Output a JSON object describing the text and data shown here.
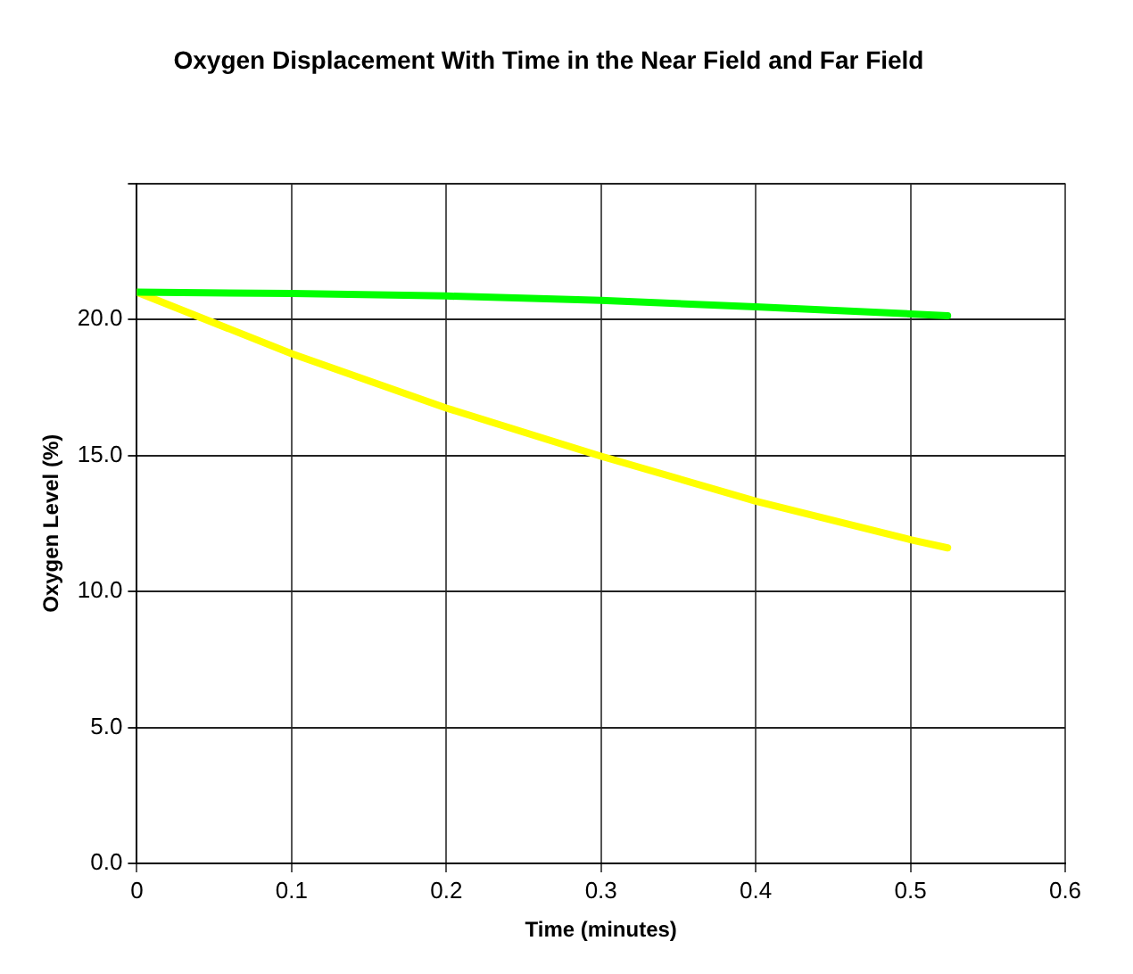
{
  "chart_data": {
    "type": "line",
    "title": "Oxygen Displacement With Time in the Near Field and Far Field",
    "xlabel": "Time (minutes)",
    "ylabel": "Oxygen Level (%)",
    "xlim": [
      0,
      0.6
    ],
    "xticks": [
      {
        "value": 0,
        "label": "0"
      },
      {
        "value": 0.1,
        "label": "0.1"
      },
      {
        "value": 0.2,
        "label": "0.2"
      },
      {
        "value": 0.3,
        "label": "0.3"
      },
      {
        "value": 0.4,
        "label": "0.4"
      },
      {
        "value": 0.5,
        "label": "0.5"
      },
      {
        "value": 0.6,
        "label": "0.6"
      }
    ],
    "ylim": [
      0,
      25
    ],
    "yticks": [
      {
        "value": 0,
        "label": "0.0"
      },
      {
        "value": 5,
        "label": "5.0"
      },
      {
        "value": 10,
        "label": "10.0"
      },
      {
        "value": 15,
        "label": "15.0"
      },
      {
        "value": 20,
        "label": "20.0"
      },
      {
        "value": 25,
        "label": null
      }
    ],
    "grid": true,
    "legend": false,
    "marker": "none",
    "line_style": "solid",
    "series": [
      {
        "color": "#00ff00",
        "x": [
          0,
          0.1,
          0.2,
          0.3,
          0.4,
          0.5,
          0.524
        ],
        "values": [
          21.0,
          20.95,
          20.86,
          20.7,
          20.46,
          20.2,
          20.13
        ]
      },
      {
        "color": "#ffff00",
        "x": [
          0,
          0.1,
          0.2,
          0.3,
          0.4,
          0.5,
          0.524
        ],
        "values": [
          21.0,
          18.74,
          16.74,
          14.97,
          13.32,
          11.9,
          11.6
        ]
      }
    ]
  }
}
